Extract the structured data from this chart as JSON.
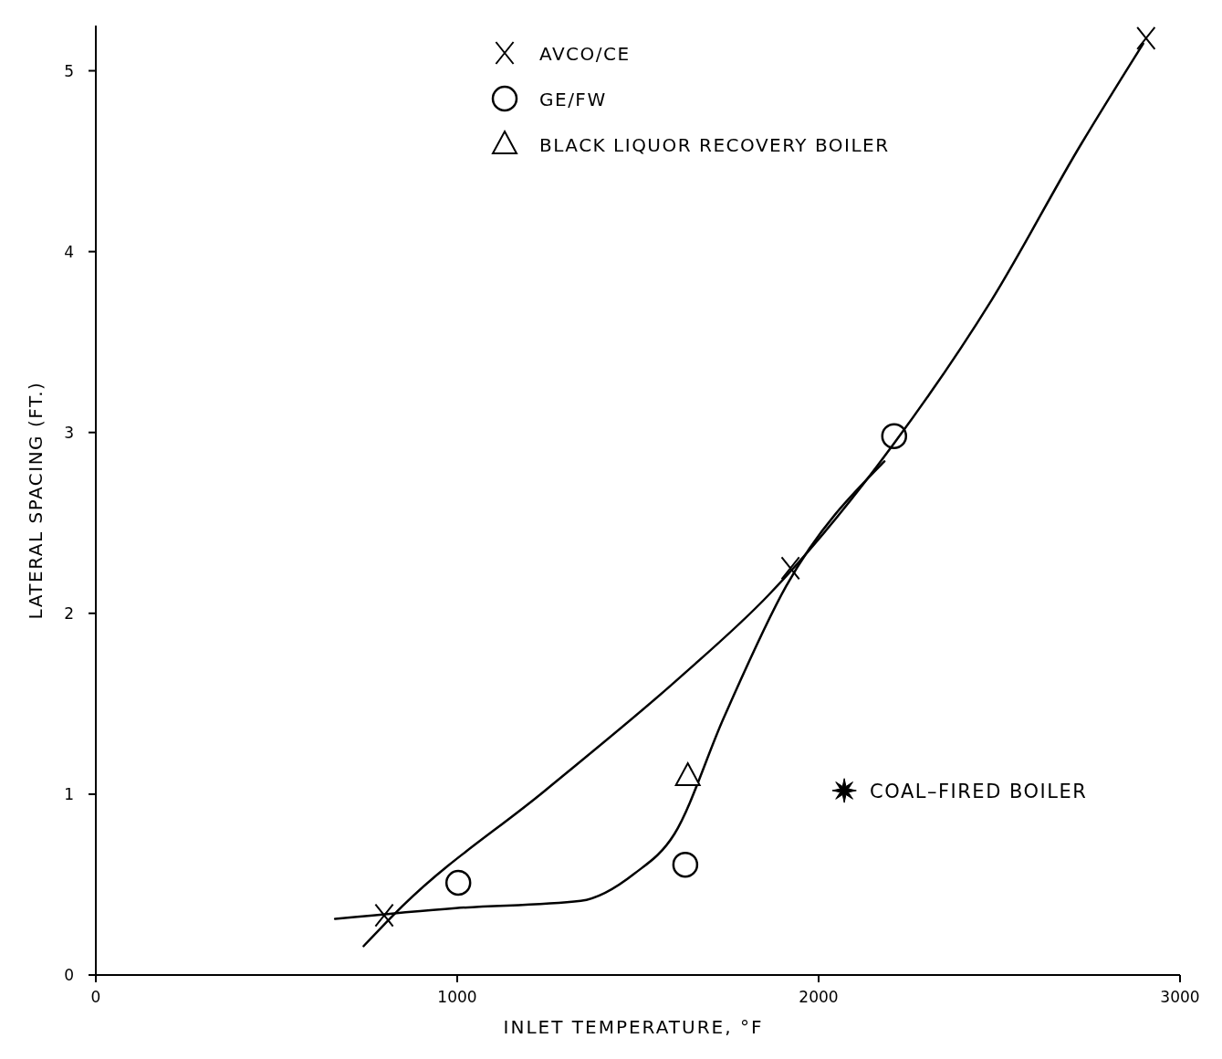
{
  "chart_data": {
    "type": "scatter",
    "xlabel": "INLET TEMPERATURE, °F",
    "ylabel": "LATERAL SPACING (FT.)",
    "xlim": [
      0,
      3000
    ],
    "xticks": [
      0,
      1000,
      2000,
      3000
    ],
    "ylim": [
      0,
      5.25
    ],
    "yticks": [
      0,
      1,
      2,
      3,
      4,
      5
    ],
    "grid": false,
    "legend": "top",
    "series": [
      {
        "type": "line",
        "color": "#000000",
        "marker": "none",
        "x": [
          741,
          848,
          1243,
          1613,
          1861,
          2209,
          2478,
          2725,
          2898
        ],
        "values": [
          0.16,
          0.38,
          1.02,
          1.64,
          2.1,
          2.94,
          3.73,
          4.59,
          5.15
        ]
      },
      {
        "type": "line",
        "color": "#000000",
        "marker": "none",
        "x": [
          662,
          996,
          1342,
          1490,
          1601,
          1737,
          1910,
          2182
        ],
        "values": [
          0.31,
          0.37,
          0.41,
          0.56,
          0.78,
          1.42,
          2.15,
          2.84
        ]
      },
      {
        "name": "AVCO/CE",
        "color": "#000000",
        "marker": "cross",
        "x": [
          798,
          1922,
          2906
        ],
        "values": [
          0.33,
          2.25,
          5.18
        ]
      },
      {
        "name": "GE/FW",
        "color": "#000000",
        "marker": "circle",
        "x": [
          1003,
          1631,
          2209
        ],
        "values": [
          0.51,
          0.61,
          2.98
        ]
      },
      {
        "name": "BLACK LIQUOR RECOVERY BOILER",
        "color": "#000000",
        "marker": "triangle",
        "x": [
          1638
        ],
        "values": [
          1.1
        ]
      },
      {
        "color": "#000000",
        "marker": "star",
        "x": [
          2071
        ],
        "values": [
          1.02
        ]
      }
    ],
    "annotations": [
      {
        "text": "COAL–FIRED BOILER",
        "x": 2071,
        "y": 1.02
      }
    ]
  }
}
